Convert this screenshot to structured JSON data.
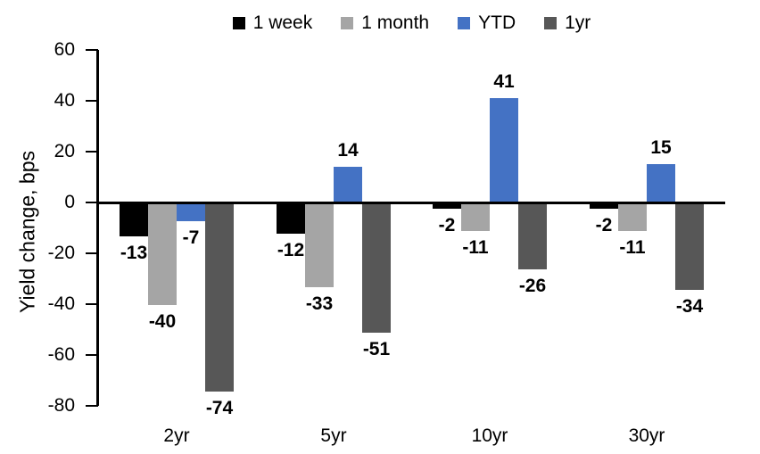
{
  "chart_data": {
    "type": "bar",
    "title": "",
    "xlabel": "",
    "ylabel": "Yield change, bps",
    "categories": [
      "2yr",
      "5yr",
      "10yr",
      "30yr"
    ],
    "series": [
      {
        "name": "1 week",
        "color": "#000000",
        "values": [
          -13,
          -12,
          -2,
          -2
        ]
      },
      {
        "name": "1 month",
        "color": "#A5A5A5",
        "values": [
          -40,
          -33,
          -11,
          -11
        ]
      },
      {
        "name": "YTD",
        "color": "#4472C4",
        "values": [
          -7,
          14,
          41,
          15
        ]
      },
      {
        "name": "1yr",
        "color": "#575757",
        "values": [
          -74,
          -51,
          -26,
          -34
        ]
      }
    ],
    "ylim": [
      -80,
      60
    ],
    "yticks": [
      60,
      40,
      20,
      0,
      -20,
      -40,
      -60,
      -80
    ],
    "grid": false,
    "legend_position": "top",
    "value_labels": "outside-end",
    "axis_color": "#000000",
    "background_color": "#FFFFFF"
  }
}
